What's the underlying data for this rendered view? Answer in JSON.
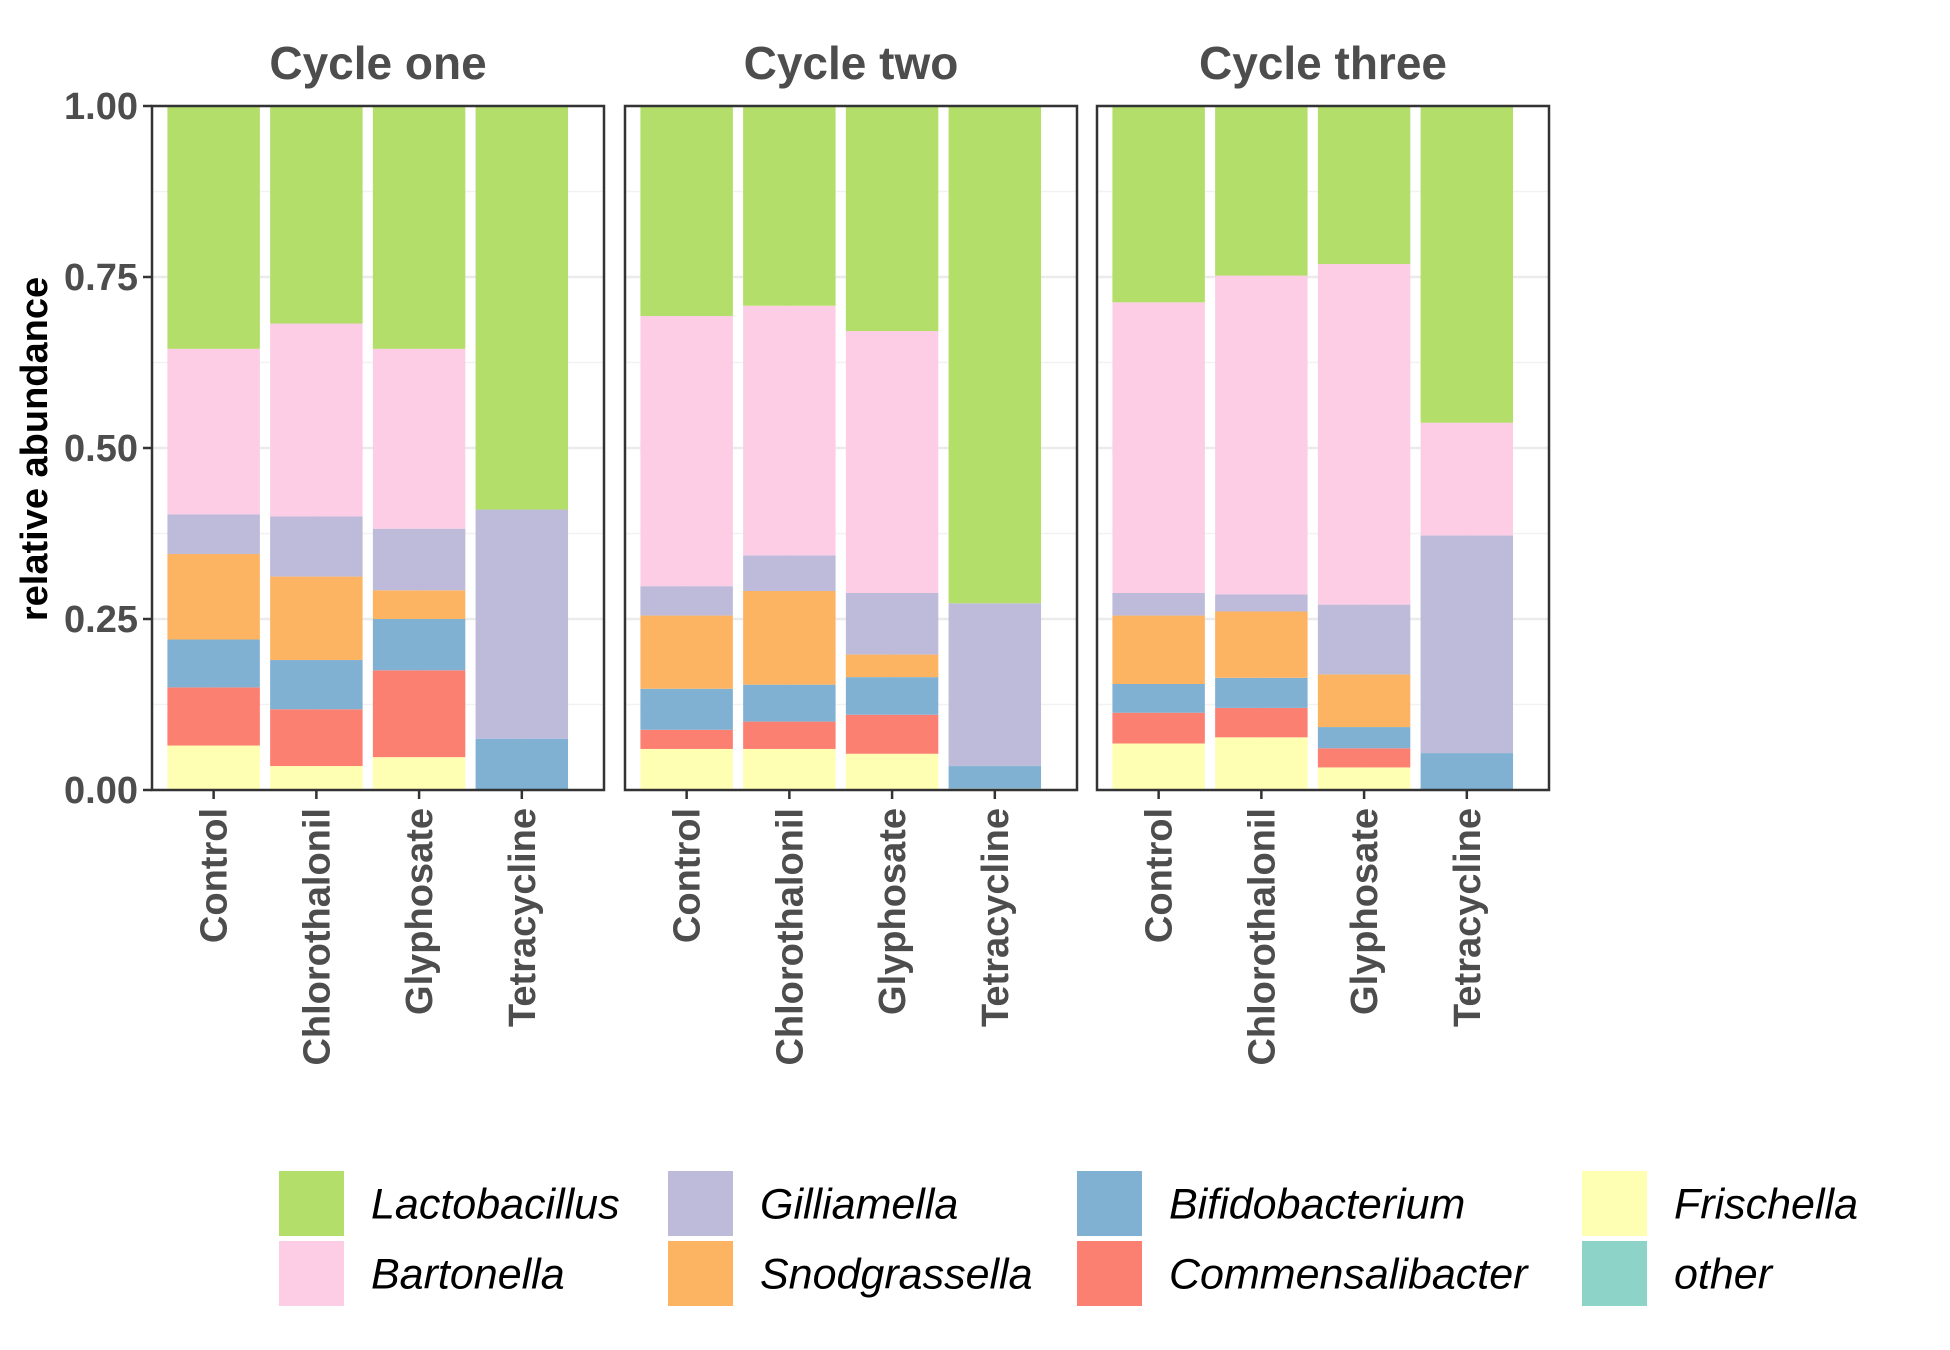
{
  "chart_data": {
    "type": "bar",
    "stacked": true,
    "ylabel": "relative abundance",
    "ylim": [
      0,
      1
    ],
    "yticks": [
      "0.00",
      "0.25",
      "0.50",
      "0.75",
      "1.00"
    ],
    "categories": [
      "Control",
      "Chlorothalonil",
      "Glyphosate",
      "Tetracycline"
    ],
    "facets": [
      "Cycle one",
      "Cycle two",
      "Cycle three"
    ],
    "series": [
      {
        "name": "Frischella",
        "color": "#FFFFB3",
        "values": [
          [
            0.065,
            0.035,
            0.048,
            0.0
          ],
          [
            0.06,
            0.06,
            0.053,
            0.002
          ],
          [
            0.068,
            0.077,
            0.033,
            0.001
          ]
        ]
      },
      {
        "name": "Commensalibacter",
        "color": "#FB8072",
        "values": [
          [
            0.085,
            0.083,
            0.127,
            0.0
          ],
          [
            0.028,
            0.04,
            0.057,
            0.0
          ],
          [
            0.045,
            0.043,
            0.028,
            0.0
          ]
        ]
      },
      {
        "name": "Bifidobacterium",
        "color": "#80B1D3",
        "values": [
          [
            0.07,
            0.072,
            0.075,
            0.075
          ],
          [
            0.06,
            0.054,
            0.055,
            0.033
          ],
          [
            0.042,
            0.044,
            0.031,
            0.053
          ]
        ]
      },
      {
        "name": "Snodgrassella",
        "color": "#FDB462",
        "values": [
          [
            0.125,
            0.122,
            0.042,
            0.0
          ],
          [
            0.107,
            0.137,
            0.033,
            0.0
          ],
          [
            0.1,
            0.097,
            0.077,
            0.0
          ]
        ]
      },
      {
        "name": "Gilliamella",
        "color": "#BEBADA",
        "values": [
          [
            0.058,
            0.088,
            0.09,
            0.335
          ],
          [
            0.043,
            0.052,
            0.09,
            0.238
          ],
          [
            0.033,
            0.025,
            0.102,
            0.318
          ]
        ]
      },
      {
        "name": "Bartonella",
        "color": "#FCCDE5",
        "values": [
          [
            0.242,
            0.282,
            0.263,
            0.0
          ],
          [
            0.395,
            0.365,
            0.383,
            0.0
          ],
          [
            0.425,
            0.466,
            0.498,
            0.165
          ]
        ]
      },
      {
        "name": "other",
        "color": "#8DD3C7",
        "values": [
          [
            0.0,
            0.0,
            0.0,
            0.0
          ],
          [
            0.0,
            0.0,
            0.0,
            0.0
          ],
          [
            0.0,
            0.0,
            0.0,
            0.0
          ]
        ]
      },
      {
        "name": "Lactobacillus",
        "color": "#B3DE69",
        "values": [
          [
            0.355,
            0.318,
            0.355,
            0.59
          ],
          [
            0.307,
            0.292,
            0.329,
            0.727
          ],
          [
            0.287,
            0.248,
            0.231,
            0.463
          ]
        ]
      }
    ],
    "legend": {
      "position": "bottom",
      "order": [
        "Lactobacillus",
        "Bartonella",
        "Gilliamella",
        "Snodgrassella",
        "Bifidobacterium",
        "Commensalibacter",
        "Frischella",
        "other"
      ]
    },
    "grid": true
  }
}
